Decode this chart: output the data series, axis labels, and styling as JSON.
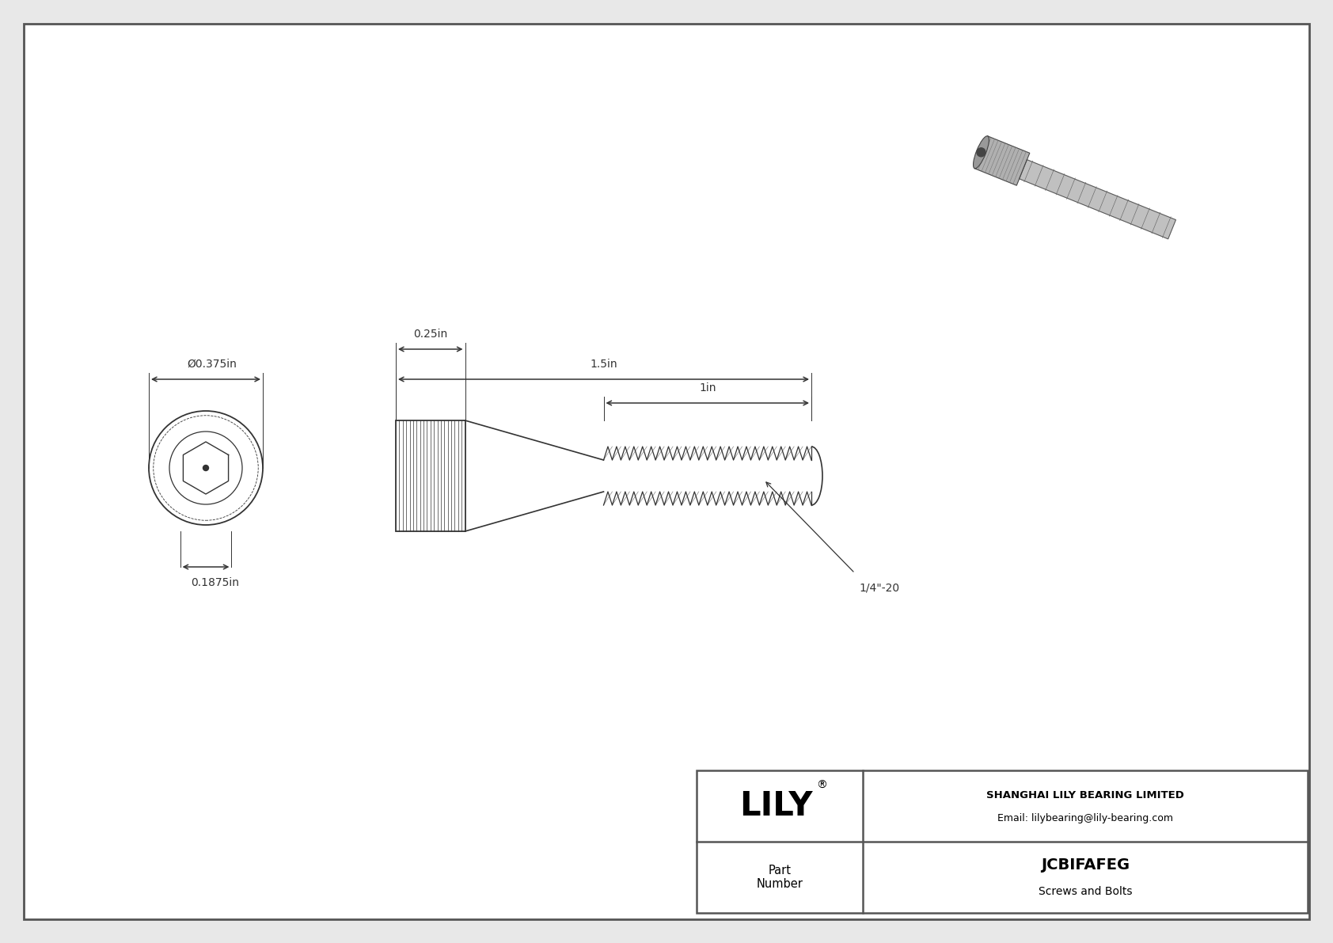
{
  "bg_color": "#e8e8e8",
  "drawing_bg": "#ffffff",
  "line_color": "#333333",
  "dim_color": "#333333",
  "title": "JCBIFAFEG",
  "subtitle": "Screws and Bolts",
  "company": "SHANGHAI LILY BEARING LIMITED",
  "email": "Email: lilybearing@lily-bearing.com",
  "part_label": "Part\nNumber",
  "lily_text": "LILY",
  "dim_diameter": "Ø0.375in",
  "dim_height": "0.1875in",
  "dim_head_length": "0.25in",
  "dim_total_length": "1.5in",
  "dim_thread_length": "1in",
  "dim_thread_label": "1/4\"-20",
  "outer_border_color": "#555555",
  "table_line_color": "#555555"
}
